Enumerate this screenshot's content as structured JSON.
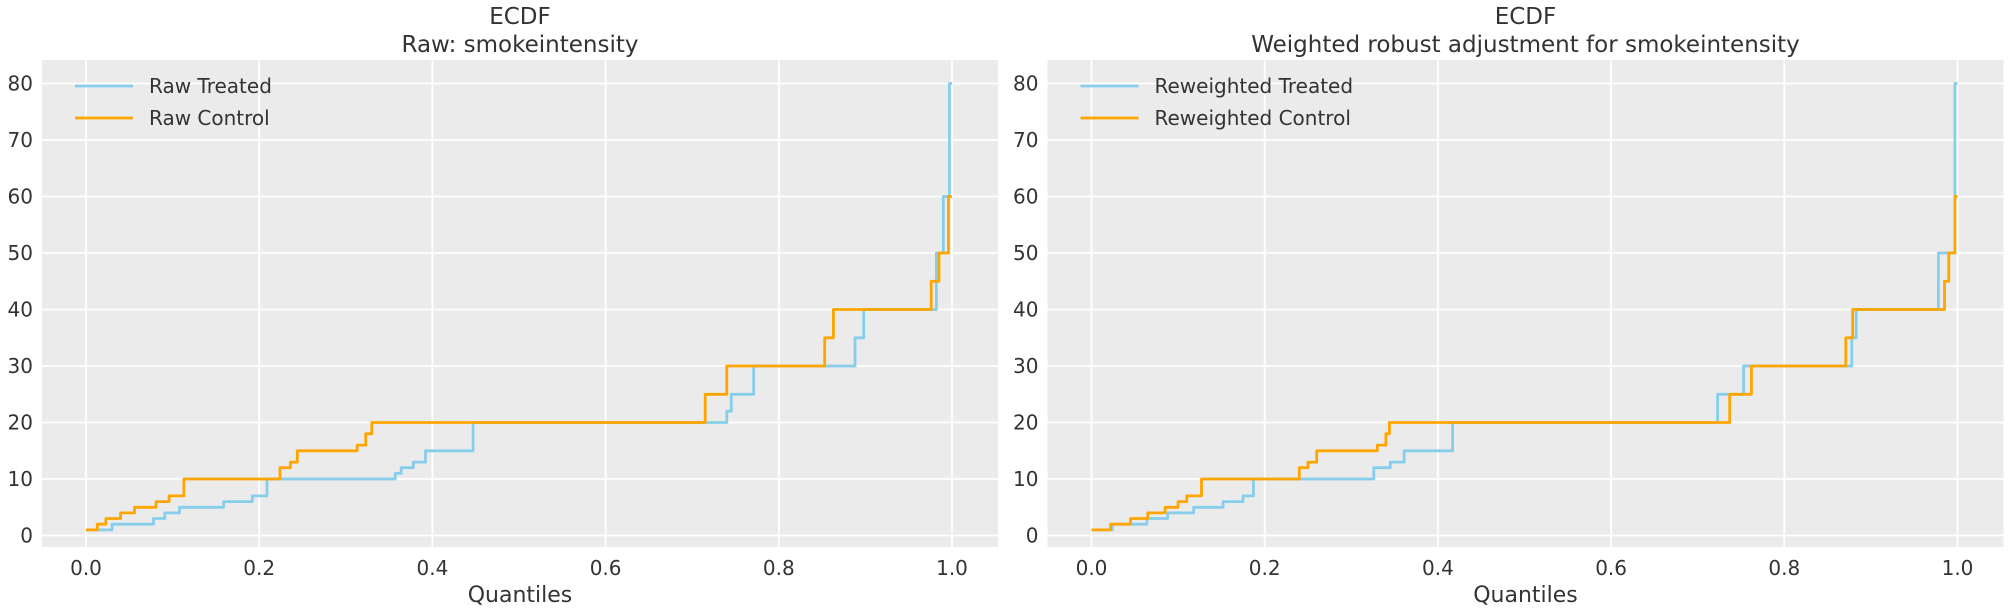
{
  "figure": {
    "background": "#ffffff",
    "plot_background": "#ebebeb",
    "grid_color": "#ffffff",
    "tick_label_color": "#383838",
    "title_color": "#262626"
  },
  "chart_data": [
    {
      "type": "line",
      "step_style": "post",
      "title_line1": "ECDF",
      "title_line2": "Raw: smokeintensity",
      "xlabel": "Quantiles",
      "ylabel": "",
      "xlim": [
        0.0,
        1.0
      ],
      "ylim": [
        0,
        80
      ],
      "grid": true,
      "xticks": {
        "values": [
          0.0,
          0.2,
          0.4,
          0.6,
          0.8,
          1.0
        ],
        "labels": [
          "0.0",
          "0.2",
          "0.4",
          "0.6",
          "0.8",
          "1.0"
        ]
      },
      "yticks": {
        "values": [
          0,
          10,
          20,
          30,
          40,
          50,
          60,
          70,
          80
        ],
        "labels": [
          "0",
          "10",
          "20",
          "30",
          "40",
          "50",
          "60",
          "70",
          "80"
        ]
      },
      "legend": {
        "position": "upper-left",
        "frame": false,
        "entries": [
          {
            "label": "Raw Treated",
            "color": "#87CEEB"
          },
          {
            "label": "Raw Control",
            "color": "#FFA500"
          }
        ]
      },
      "series": [
        {
          "name": "Raw Treated",
          "color": "#87CEEB",
          "points": [
            [
              0.0,
              1
            ],
            [
              0.03,
              2
            ],
            [
              0.078,
              3
            ],
            [
              0.091,
              4
            ],
            [
              0.108,
              5
            ],
            [
              0.159,
              6
            ],
            [
              0.192,
              7
            ],
            [
              0.209,
              10
            ],
            [
              0.357,
              11
            ],
            [
              0.364,
              12
            ],
            [
              0.378,
              13
            ],
            [
              0.392,
              15
            ],
            [
              0.447,
              20
            ],
            [
              0.74,
              22
            ],
            [
              0.745,
              25
            ],
            [
              0.771,
              30
            ],
            [
              0.888,
              35
            ],
            [
              0.898,
              40
            ],
            [
              0.982,
              50
            ],
            [
              0.99,
              60
            ],
            [
              0.997,
              80
            ],
            [
              1.0,
              80
            ]
          ]
        },
        {
          "name": "Raw Control",
          "color": "#FFA500",
          "points": [
            [
              0.0,
              1
            ],
            [
              0.013,
              2
            ],
            [
              0.023,
              3
            ],
            [
              0.04,
              4
            ],
            [
              0.056,
              5
            ],
            [
              0.081,
              6
            ],
            [
              0.096,
              7
            ],
            [
              0.113,
              10
            ],
            [
              0.224,
              12
            ],
            [
              0.236,
              13
            ],
            [
              0.244,
              15
            ],
            [
              0.313,
              16
            ],
            [
              0.323,
              18
            ],
            [
              0.33,
              20
            ],
            [
              0.715,
              25
            ],
            [
              0.74,
              30
            ],
            [
              0.853,
              35
            ],
            [
              0.863,
              40
            ],
            [
              0.976,
              45
            ],
            [
              0.985,
              50
            ],
            [
              0.996,
              60
            ],
            [
              1.0,
              60
            ]
          ]
        }
      ]
    },
    {
      "type": "line",
      "step_style": "post",
      "title_line1": "ECDF",
      "title_line2": "Weighted robust adjustment for smokeintensity",
      "xlabel": "Quantiles",
      "ylabel": "",
      "xlim": [
        0.0,
        1.0
      ],
      "ylim": [
        0,
        80
      ],
      "grid": true,
      "xticks": {
        "values": [
          0.0,
          0.2,
          0.4,
          0.6,
          0.8,
          1.0
        ],
        "labels": [
          "0.0",
          "0.2",
          "0.4",
          "0.6",
          "0.8",
          "1.0"
        ]
      },
      "yticks": {
        "values": [
          0,
          10,
          20,
          30,
          40,
          50,
          60,
          70,
          80
        ],
        "labels": [
          "0",
          "10",
          "20",
          "30",
          "40",
          "50",
          "60",
          "70",
          "80"
        ]
      },
      "legend": {
        "position": "upper-left",
        "frame": false,
        "entries": [
          {
            "label": "Reweighted Treated",
            "color": "#87CEEB"
          },
          {
            "label": "Reweighted Control",
            "color": "#FFA500"
          }
        ]
      },
      "series": [
        {
          "name": "Reweighted Treated",
          "color": "#87CEEB",
          "points": [
            [
              0.0,
              1
            ],
            [
              0.024,
              2
            ],
            [
              0.064,
              3
            ],
            [
              0.088,
              4
            ],
            [
              0.118,
              5
            ],
            [
              0.152,
              6
            ],
            [
              0.175,
              7
            ],
            [
              0.187,
              10
            ],
            [
              0.326,
              12
            ],
            [
              0.345,
              13
            ],
            [
              0.361,
              15
            ],
            [
              0.417,
              20
            ],
            [
              0.723,
              25
            ],
            [
              0.753,
              30
            ],
            [
              0.878,
              35
            ],
            [
              0.883,
              40
            ],
            [
              0.978,
              50
            ],
            [
              0.997,
              80
            ],
            [
              1.0,
              80
            ]
          ]
        },
        {
          "name": "Reweighted Control",
          "color": "#FFA500",
          "points": [
            [
              0.0,
              1
            ],
            [
              0.022,
              2
            ],
            [
              0.045,
              3
            ],
            [
              0.065,
              4
            ],
            [
              0.085,
              5
            ],
            [
              0.1,
              6
            ],
            [
              0.11,
              7
            ],
            [
              0.127,
              10
            ],
            [
              0.24,
              12
            ],
            [
              0.25,
              13
            ],
            [
              0.26,
              15
            ],
            [
              0.33,
              16
            ],
            [
              0.34,
              18
            ],
            [
              0.344,
              20
            ],
            [
              0.737,
              25
            ],
            [
              0.762,
              30
            ],
            [
              0.871,
              35
            ],
            [
              0.879,
              40
            ],
            [
              0.985,
              45
            ],
            [
              0.99,
              50
            ],
            [
              0.997,
              60
            ],
            [
              1.0,
              60
            ]
          ]
        }
      ]
    }
  ]
}
